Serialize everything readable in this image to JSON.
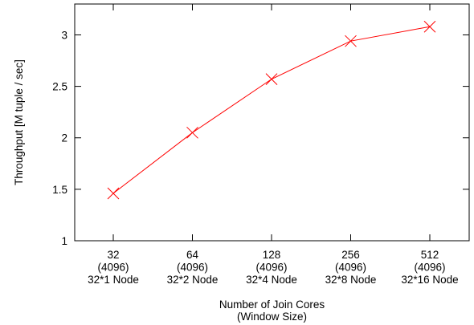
{
  "chart_data": {
    "type": "line",
    "xlabel": [
      "Number of Join Cores",
      "(Window Size)"
    ],
    "ylabel": "Throughput [M tuple / sec]",
    "ylim": [
      1,
      3.3
    ],
    "yticks": [
      1,
      1.5,
      2,
      2.5,
      3
    ],
    "ytick_labels": [
      "1",
      "1.5",
      "2",
      "2.5",
      "3"
    ],
    "grid": false,
    "categories": [
      [
        "32",
        "(4096)",
        "32*1 Node"
      ],
      [
        "64",
        "(4096)",
        "32*2 Node"
      ],
      [
        "128",
        "(4096)",
        "32*4 Node"
      ],
      [
        "256",
        "(4096)",
        "32*8 Node"
      ],
      [
        "512",
        "(4096)",
        "32*16 Node"
      ]
    ],
    "series": [
      {
        "color": "#ff0000",
        "marker": "x",
        "values": [
          1.46,
          2.05,
          2.57,
          2.94,
          3.08
        ]
      }
    ]
  }
}
